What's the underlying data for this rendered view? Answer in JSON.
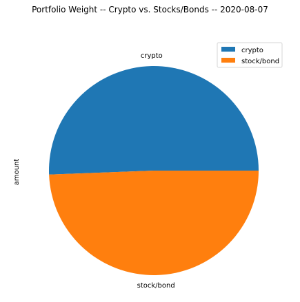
{
  "chart_data": {
    "type": "pie",
    "title": "Portfolio Weight -- Crypto vs. Stocks/Bonds -- 2020-08-07",
    "ylabel": "amount",
    "slices": [
      {
        "label": "crypto",
        "value": 50.6
      },
      {
        "label": "stock/bond",
        "value": 49.4
      }
    ],
    "legend": {
      "placement": "top-right",
      "entries": [
        "crypto",
        "stock/bond"
      ]
    },
    "colors": [
      "#1f77b4",
      "#ff7f0e"
    ]
  }
}
